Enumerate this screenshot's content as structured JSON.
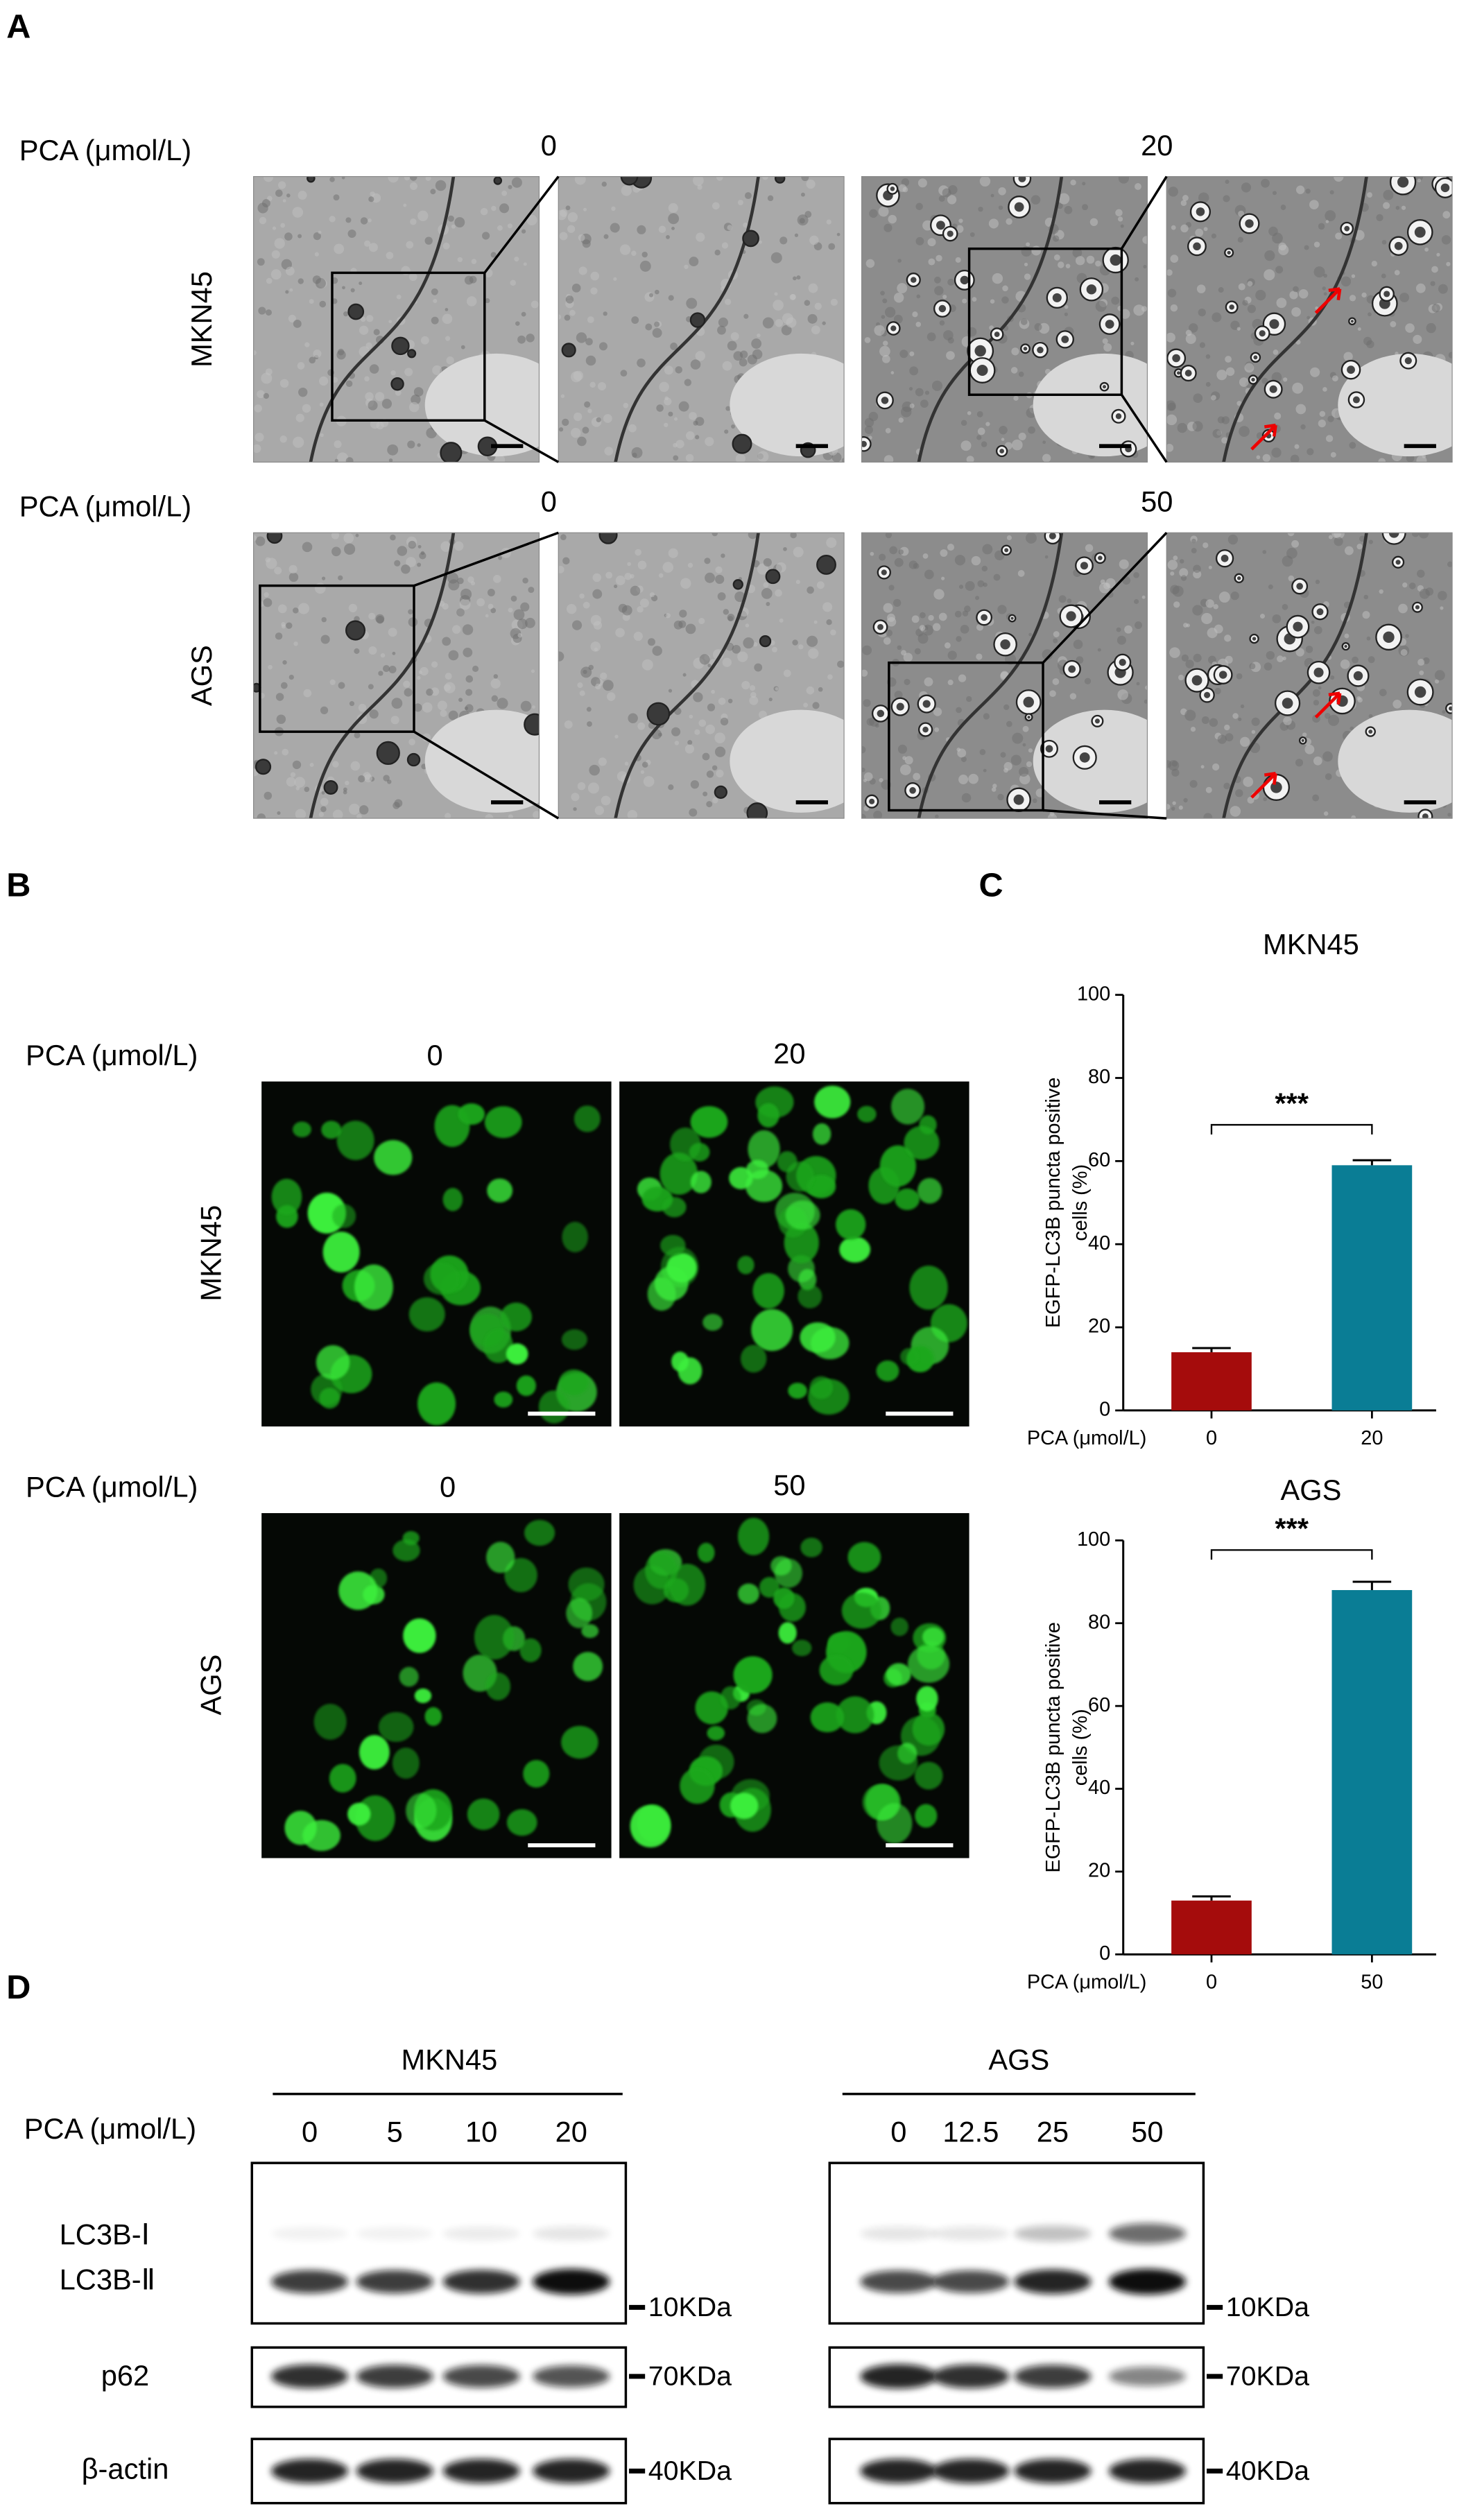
{
  "panel_labels": [
    "A",
    "B",
    "C",
    "D"
  ],
  "panel_a": {
    "rows": [
      {
        "treatment_label": "PCA (μmol/L)",
        "cell_line": "MKN45",
        "doses": [
          "0",
          "20"
        ]
      },
      {
        "treatment_label": "PCA (μmol/L)",
        "cell_line": "AGS",
        "doses": [
          "0",
          "50"
        ]
      }
    ]
  },
  "panel_b": {
    "rows": [
      {
        "treatment_label": "PCA (μmol/L)",
        "cell_line": "MKN45",
        "doses": [
          "0",
          "20"
        ]
      },
      {
        "treatment_label": "PCA (μmol/L)",
        "cell_line": "AGS",
        "doses": [
          "0",
          "50"
        ]
      }
    ]
  },
  "chart_data": [
    {
      "type": "bar",
      "title": "MKN45",
      "ylabel": [
        "EGFP-LC3B puncta positive",
        "cells (%)"
      ],
      "xlabel": "PCA (μmol/L)",
      "categories": [
        "0",
        "20"
      ],
      "values": [
        14,
        59
      ],
      "errors": [
        1,
        1.2
      ],
      "colors": [
        "#a50c0c",
        "#0a7d95"
      ],
      "ylim": [
        0,
        100
      ],
      "yticks": [
        0,
        20,
        40,
        60,
        80,
        100
      ],
      "annotation": "***"
    },
    {
      "type": "bar",
      "title": "AGS",
      "ylabel": [
        "EGFP-LC3B puncta positive",
        "cells (%)"
      ],
      "xlabel": "PCA (μmol/L)",
      "categories": [
        "0",
        "50"
      ],
      "values": [
        13,
        88
      ],
      "errors": [
        1,
        2
      ],
      "colors": [
        "#a50c0c",
        "#0a7d95"
      ],
      "ylim": [
        0,
        100
      ],
      "yticks": [
        0,
        20,
        40,
        60,
        80,
        100
      ],
      "annotation": "***"
    }
  ],
  "panel_d": {
    "treatment_label": "PCA (μmol/L)",
    "groups": [
      {
        "cell_line": "MKN45",
        "doses": [
          "0",
          "5",
          "10",
          "20"
        ]
      },
      {
        "cell_line": "AGS",
        "doses": [
          "0",
          "12.5",
          "25",
          "50"
        ]
      }
    ],
    "rows": [
      {
        "labels": [
          "LC3B-Ⅰ",
          "LC3B-Ⅱ"
        ],
        "marker": "10KDa"
      },
      {
        "labels": [
          "p62"
        ],
        "marker": "70KDa"
      },
      {
        "labels": [
          "β-actin"
        ],
        "marker": "40KDa"
      }
    ]
  }
}
